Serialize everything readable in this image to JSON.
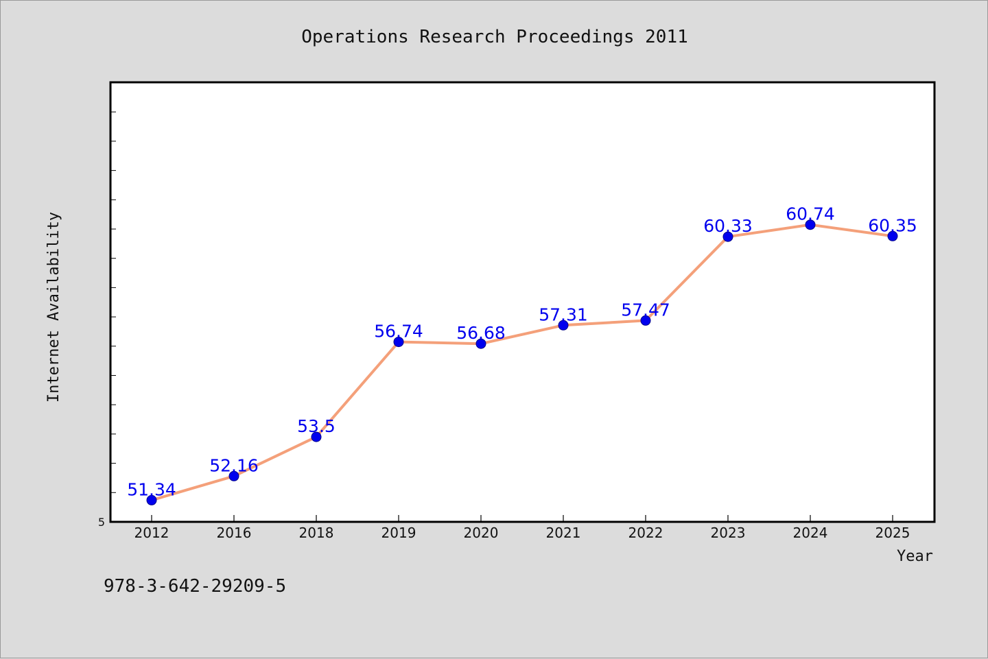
{
  "chart_data": {
    "type": "line",
    "title": "Operations Research Proceedings 2011",
    "xlabel": "Year",
    "ylabel": "Internet Availability",
    "categories": [
      "2012",
      "2016",
      "2018",
      "2019",
      "2020",
      "2021",
      "2022",
      "2023",
      "2024",
      "2025"
    ],
    "series": [
      {
        "values": [
          51.34,
          52.16,
          53.5,
          56.74,
          56.68,
          57.31,
          57.47,
          60.33,
          60.74,
          60.35
        ],
        "labels": [
          "51.34",
          "52.16",
          "53.5",
          "56.74",
          "56.68",
          "57.31",
          "57.47",
          "60.33",
          "60.74",
          "60.35"
        ],
        "line_color": "#f4a07a",
        "marker_color": "#0000ee",
        "label_color": "#0000ee"
      }
    ],
    "ylim": [
      50.6,
      65.6
    ],
    "y_tick_labels": [
      "5"
    ],
    "grid": false
  },
  "footer": {
    "isbn": "978-3-642-29209-5"
  }
}
